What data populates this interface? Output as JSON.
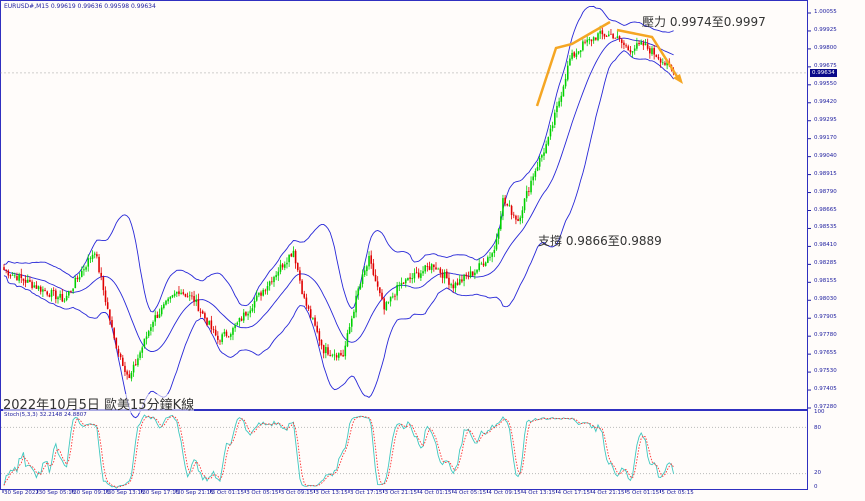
{
  "header": {
    "symbol_line": "EURUSD#,M15  0.99619 0.99636 0.99598 0.99634"
  },
  "title": "2022年10月5日 歐美15分鐘K線",
  "annotations": {
    "resistance": "壓力 0.9974至0.9997",
    "support": "支撐 0.9866至0.9889"
  },
  "current_price": "0.99634",
  "stoch": {
    "label": "Stoch(5,3,3) 32.2148 24.8807",
    "levels": [
      "100",
      "80",
      "20",
      "0"
    ]
  },
  "colors": {
    "bull": "#00d000",
    "bear": "#e00000",
    "bands": "#2828d8",
    "stoch_main": "#40c8c0",
    "stoch_signal": "#ff3030",
    "arrow": "#f5a623",
    "axis": "#2020a0"
  },
  "chart_data": {
    "type": "candlestick",
    "indicators": [
      "Bollinger Bands",
      "Stochastic(5,3,3)"
    ],
    "ylim": [
      0.9728,
      1.00055
    ],
    "y_ticks": [
      "1.00055",
      "0.99925",
      "0.99800",
      "0.99675",
      "0.99550",
      "0.99420",
      "0.99295",
      "0.99170",
      "0.99040",
      "0.98915",
      "0.98790",
      "0.98665",
      "0.98535",
      "0.98410",
      "0.98285",
      "0.98155",
      "0.98030",
      "0.97905",
      "0.97780",
      "0.97655",
      "0.97530",
      "0.97405",
      "0.97280"
    ],
    "x_ticks": [
      "30 Sep 2022",
      "30 Sep 05:15",
      "30 Sep 09:15",
      "30 Sep 13:15",
      "30 Sep 17:15",
      "30 Sep 21:15",
      "3 Oct 01:15",
      "3 Oct 05:15",
      "3 Oct 09:15",
      "3 Oct 13:15",
      "3 Oct 17:15",
      "3 Oct 21:15",
      "4 Oct 01:15",
      "4 Oct 05:15",
      "4 Oct 09:15",
      "4 Oct 13:15",
      "4 Oct 17:15",
      "4 Oct 21:15",
      "5 Oct 01:15",
      "5 Oct 05:15"
    ],
    "close_path_bar_price": [
      [
        0,
        0.9825
      ],
      [
        18,
        0.9811
      ],
      [
        28,
        0.9804
      ],
      [
        42,
        0.9839
      ],
      [
        51,
        0.9776
      ],
      [
        58,
        0.9748
      ],
      [
        69,
        0.979
      ],
      [
        81,
        0.9811
      ],
      [
        88,
        0.9804
      ],
      [
        99,
        0.9776
      ],
      [
        106,
        0.9783
      ],
      [
        120,
        0.9811
      ],
      [
        134,
        0.9839
      ],
      [
        139,
        0.9804
      ],
      [
        148,
        0.9769
      ],
      [
        157,
        0.9765
      ],
      [
        164,
        0.9811
      ],
      [
        169,
        0.9832
      ],
      [
        176,
        0.9797
      ],
      [
        183,
        0.9814
      ],
      [
        199,
        0.9829
      ],
      [
        208,
        0.9814
      ],
      [
        218,
        0.9824
      ],
      [
        227,
        0.9839
      ],
      [
        231,
        0.9874
      ],
      [
        238,
        0.986
      ],
      [
        245,
        0.9892
      ],
      [
        252,
        0.9916
      ],
      [
        257,
        0.9944
      ],
      [
        262,
        0.9973
      ],
      [
        268,
        0.9983
      ],
      [
        275,
        0.999
      ],
      [
        282,
        0.999
      ],
      [
        289,
        0.998
      ],
      [
        296,
        0.9983
      ],
      [
        303,
        0.9975
      ],
      [
        310,
        0.99634
      ]
    ]
  }
}
